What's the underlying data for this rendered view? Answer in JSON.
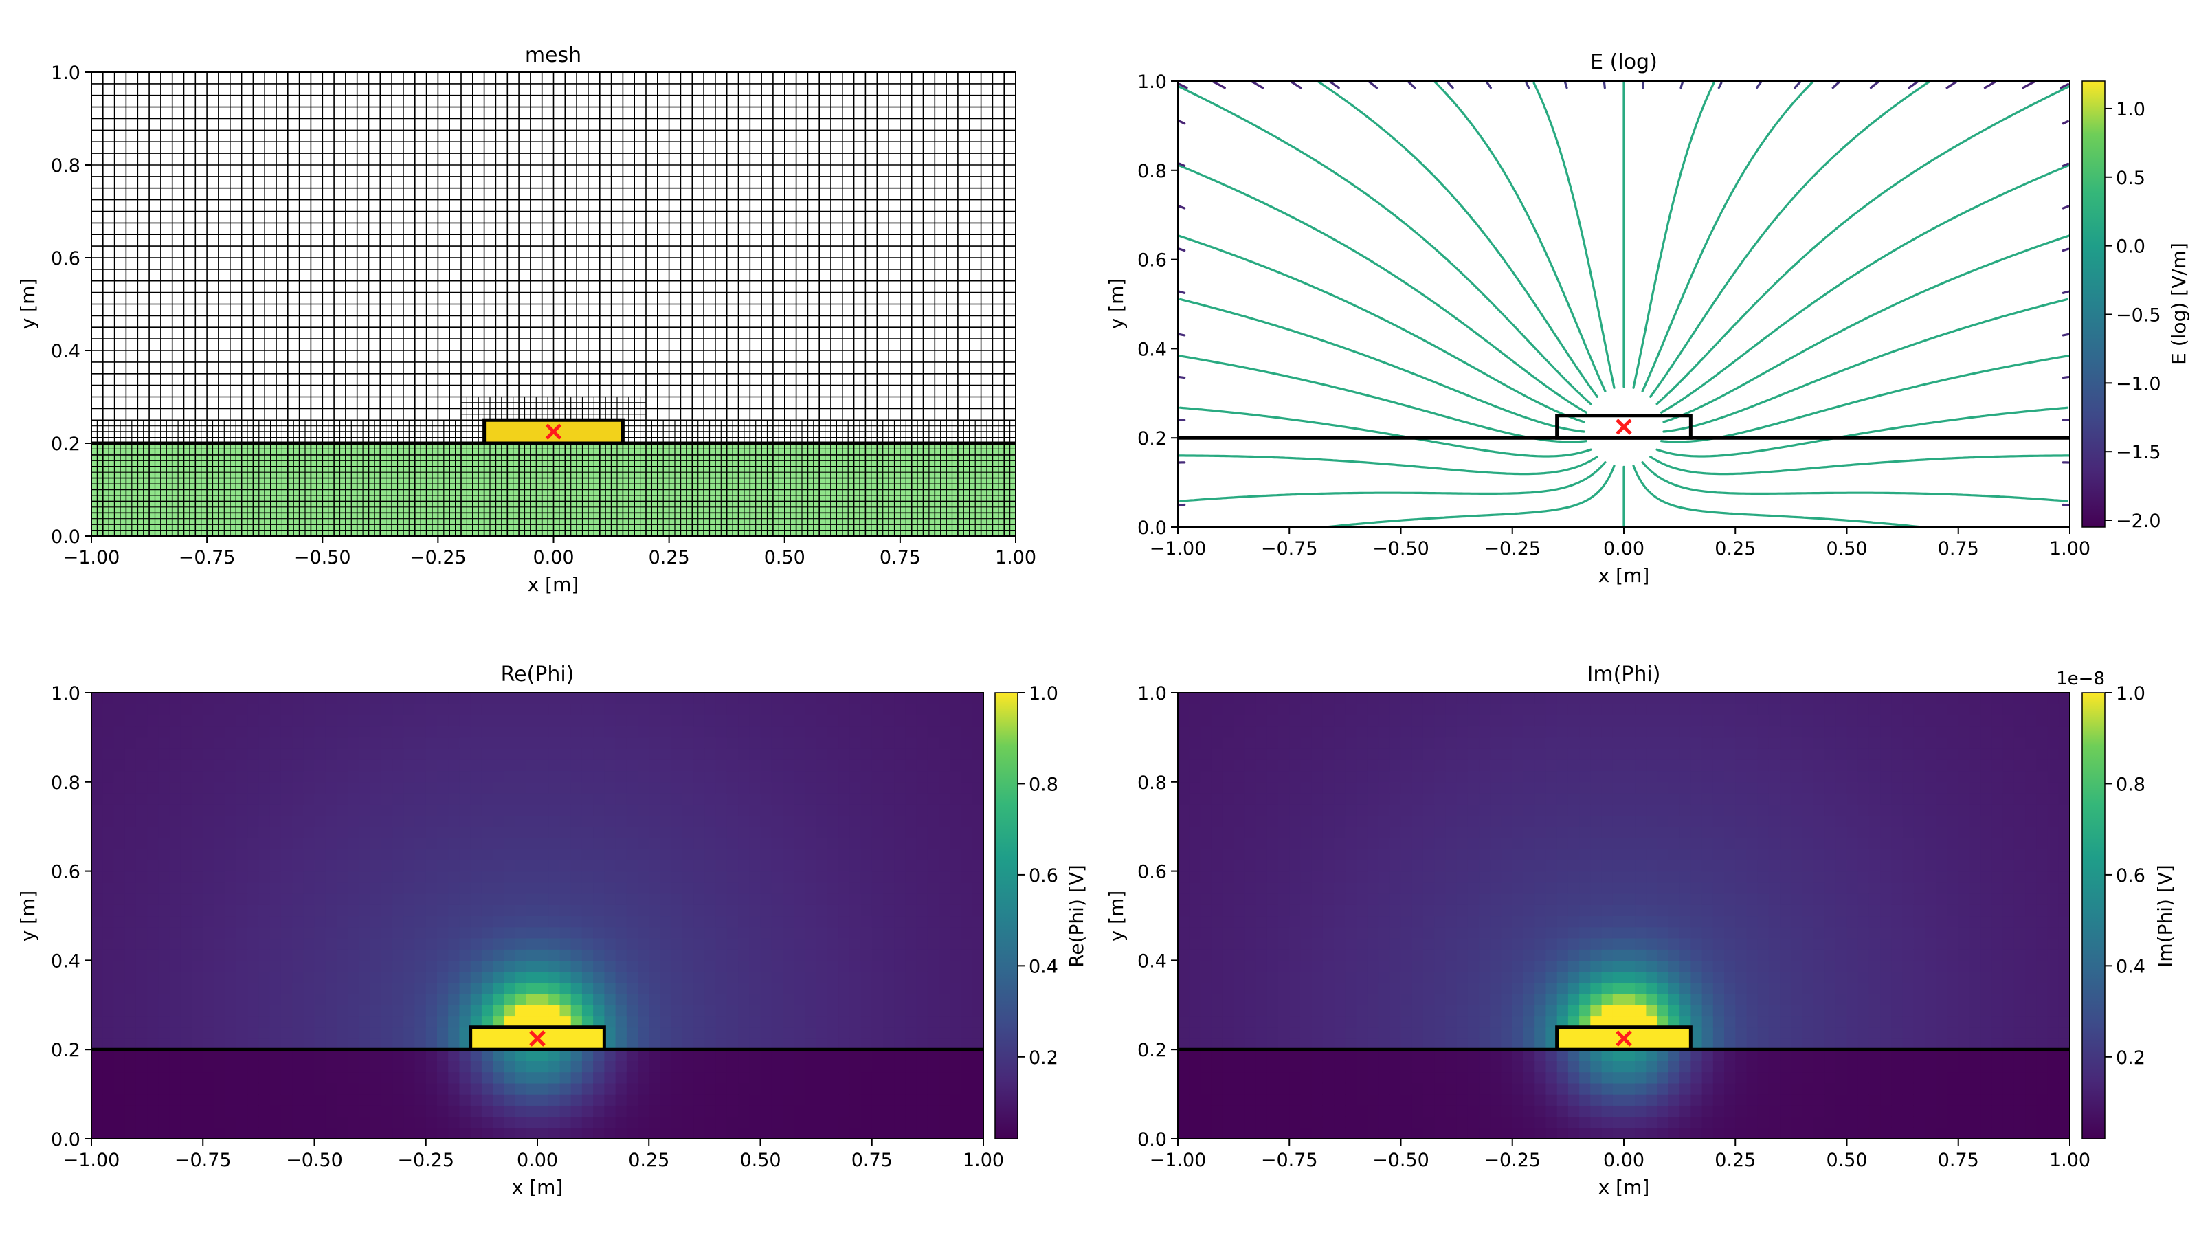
{
  "colors": {
    "domain_fill": "#90e48a",
    "block_fill": "#f2d21b",
    "source_marker": "#ff1c1c",
    "viridis_low": "#440154",
    "viridis_mid": "#21918c",
    "viridis_high": "#fde725"
  },
  "chart_data": [
    {
      "type": "mesh",
      "title": "mesh",
      "xlabel": "x [m]",
      "ylabel": "y [m]",
      "xlim": [
        -1.0,
        1.0
      ],
      "ylim": [
        0.0,
        1.0
      ],
      "xticks": [
        "−1.00",
        "−0.75",
        "−0.50",
        "−0.25",
        "0.00",
        "0.25",
        "0.50",
        "0.75",
        "1.00"
      ],
      "yticks": [
        "0.0",
        "0.2",
        "0.4",
        "0.6",
        "0.8",
        "1.0"
      ],
      "coarse_cell": 0.025,
      "fine_cell": 0.0125,
      "fine_layer_y": [
        0.0,
        0.25
      ],
      "refined_patch": {
        "x": [
          -0.2,
          0.2
        ],
        "y": [
          0.25,
          0.3
        ]
      },
      "block": {
        "x": [
          -0.15,
          0.15
        ],
        "y": [
          0.2,
          0.25
        ]
      },
      "interface_y": 0.2,
      "source": {
        "x": 0.0,
        "y": 0.225
      }
    },
    {
      "type": "streamplot",
      "title": "E (log)",
      "xlabel": "x [m]",
      "ylabel": "y [m]",
      "xlim": [
        -1.0,
        1.0
      ],
      "ylim": [
        0.0,
        1.0
      ],
      "xticks": [
        "−1.00",
        "−0.75",
        "−0.50",
        "−0.25",
        "0.00",
        "0.25",
        "0.50",
        "0.75",
        "1.00"
      ],
      "yticks": [
        "0.0",
        "0.2",
        "0.4",
        "0.6",
        "0.8",
        "1.0"
      ],
      "colorbar": {
        "label": "E (log) [V/m]",
        "min": -2.05,
        "max": 1.2,
        "ticks": [
          "1.0",
          "0.5",
          "0.0",
          "−0.5",
          "−1.0",
          "−1.5",
          "−2.0"
        ],
        "tick_values": [
          1.0,
          0.5,
          0.0,
          -0.5,
          -1.0,
          -1.5,
          -2.0
        ]
      },
      "block": {
        "x": [
          -0.15,
          0.15
        ],
        "y": [
          0.2,
          0.25
        ]
      },
      "interface_y": 0.2,
      "source": {
        "x": 0.0,
        "y": 0.225
      }
    },
    {
      "type": "heatmap",
      "title": "Re(Phi)",
      "xlabel": "x [m]",
      "ylabel": "y [m]",
      "xlim": [
        -1.0,
        1.0
      ],
      "ylim": [
        0.0,
        1.0
      ],
      "xticks": [
        "−1.00",
        "−0.75",
        "−0.50",
        "−0.25",
        "0.00",
        "0.25",
        "0.50",
        "0.75",
        "1.00"
      ],
      "yticks": [
        "0.0",
        "0.2",
        "0.4",
        "0.6",
        "0.8",
        "1.0"
      ],
      "colorbar": {
        "label": "Re(Phi) [V]",
        "min": 0.02,
        "max": 1.0,
        "ticks": [
          "1.0",
          "0.8",
          "0.6",
          "0.4",
          "0.2"
        ],
        "tick_values": [
          1.0,
          0.8,
          0.6,
          0.4,
          0.2
        ],
        "offset": ""
      },
      "block": {
        "x": [
          -0.15,
          0.15
        ],
        "y": [
          0.2,
          0.25
        ]
      },
      "interface_y": 0.2,
      "source": {
        "x": 0.0,
        "y": 0.225
      }
    },
    {
      "type": "heatmap",
      "title": "Im(Phi)",
      "xlabel": "x [m]",
      "ylabel": "y [m]",
      "xlim": [
        -1.0,
        1.0
      ],
      "ylim": [
        0.0,
        1.0
      ],
      "xticks": [
        "−1.00",
        "−0.75",
        "−0.50",
        "−0.25",
        "0.00",
        "0.25",
        "0.50",
        "0.75",
        "1.00"
      ],
      "yticks": [
        "0.0",
        "0.2",
        "0.4",
        "0.6",
        "0.8",
        "1.0"
      ],
      "colorbar": {
        "label": "Im(Phi) [V]",
        "min": 0.02,
        "max": 1.0,
        "ticks": [
          "1.0",
          "0.8",
          "0.6",
          "0.4",
          "0.2"
        ],
        "tick_values": [
          1.0,
          0.8,
          0.6,
          0.4,
          0.2
        ],
        "offset": "1e−8"
      },
      "block": {
        "x": [
          -0.15,
          0.15
        ],
        "y": [
          0.2,
          0.25
        ]
      },
      "interface_y": 0.2,
      "source": {
        "x": 0.0,
        "y": 0.225
      }
    }
  ]
}
